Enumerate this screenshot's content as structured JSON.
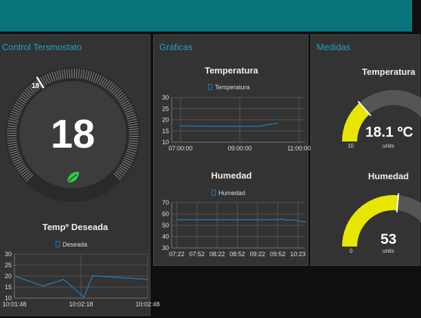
{
  "colors": {
    "header": "#097479",
    "panel": "#333333",
    "title": "#1fa3c4",
    "series": "#1f77b4",
    "gauge_fill": "#e6e600",
    "gauge_track": "#555555",
    "leaf": "#2ecc40"
  },
  "panels": {
    "control": {
      "title": "Control Tersmostato"
    },
    "graficas": {
      "title": "Gráficas"
    },
    "medidas": {
      "title": "Medidas"
    }
  },
  "thermostat": {
    "current": "18",
    "setpoint": "18",
    "leaf_icon": "leaf-icon"
  },
  "deseada": {
    "title": "Tempº Deseada",
    "legend": "Deseada"
  },
  "temperatura_chart": {
    "title": "Temperatura",
    "legend": "Temperatura"
  },
  "humedad_chart": {
    "title": "Humedad",
    "legend": "Humedad"
  },
  "gauges": {
    "temperatura": {
      "title": "Temperatura",
      "value": "18.1 ºC",
      "min": "10",
      "units": "units",
      "fraction": 0.27
    },
    "humedad": {
      "title": "Humedad",
      "value": "53",
      "min": "0",
      "units": "units",
      "fraction": 0.53
    }
  },
  "chart_data": [
    {
      "type": "line",
      "name": "deseada",
      "series": [
        {
          "name": "Deseada",
          "x": [
            0,
            10,
            17,
            24,
            27,
            33,
            46
          ],
          "values": [
            20,
            15.5,
            18.5,
            10.5,
            20.2,
            19.6,
            18.5
          ]
        }
      ],
      "ylim": [
        10,
        30
      ],
      "yticks": [
        "30",
        "25",
        "20",
        "15",
        "10"
      ],
      "xticks": [
        {
          "pos": 0,
          "label": "10:01:48"
        },
        {
          "pos": 23,
          "label": "10:02:18"
        },
        {
          "pos": 46,
          "label": "10:02:48"
        }
      ],
      "xlim": [
        0,
        46
      ]
    },
    {
      "type": "line",
      "name": "temperatura",
      "series": [
        {
          "name": "Temperatura",
          "x": [
            0,
            0.6,
            1.2,
            1.8,
            2.3,
            2.7,
            3.0,
            3.3
          ],
          "values": [
            17.3,
            17.2,
            17.1,
            17.1,
            17.1,
            17.2,
            18,
            18.5
          ]
        }
      ],
      "ylim": [
        10,
        30
      ],
      "yticks": [
        "30",
        "25",
        "20",
        "15",
        "10"
      ],
      "xticks": [
        {
          "pos": 0,
          "label": "07:00:00"
        },
        {
          "pos": 2,
          "label": "09:00:00"
        },
        {
          "pos": 4,
          "label": "11:00:00"
        }
      ],
      "xlim": [
        -0.3,
        4.2
      ]
    },
    {
      "type": "line",
      "name": "humedad",
      "series": [
        {
          "name": "Humedad",
          "x": [
            0,
            1,
            2,
            3,
            4,
            5,
            5.2,
            5.5,
            5.8,
            6.1,
            6.4
          ],
          "values": [
            55,
            55,
            55,
            55,
            55,
            55,
            55.5,
            54.5,
            55,
            53.5,
            53
          ]
        }
      ],
      "ylim": [
        30,
        70
      ],
      "yticks": [
        "70",
        "60",
        "50",
        "40",
        "30"
      ],
      "xticks": [
        {
          "pos": 0,
          "label": "07:22"
        },
        {
          "pos": 1,
          "label": "07:52"
        },
        {
          "pos": 2,
          "label": "08:22"
        },
        {
          "pos": 3,
          "label": "08:52"
        },
        {
          "pos": 4,
          "label": "09:22"
        },
        {
          "pos": 5,
          "label": "09:52"
        },
        {
          "pos": 6,
          "label": "10:23"
        }
      ],
      "xlim": [
        -0.25,
        6.35
      ]
    }
  ]
}
